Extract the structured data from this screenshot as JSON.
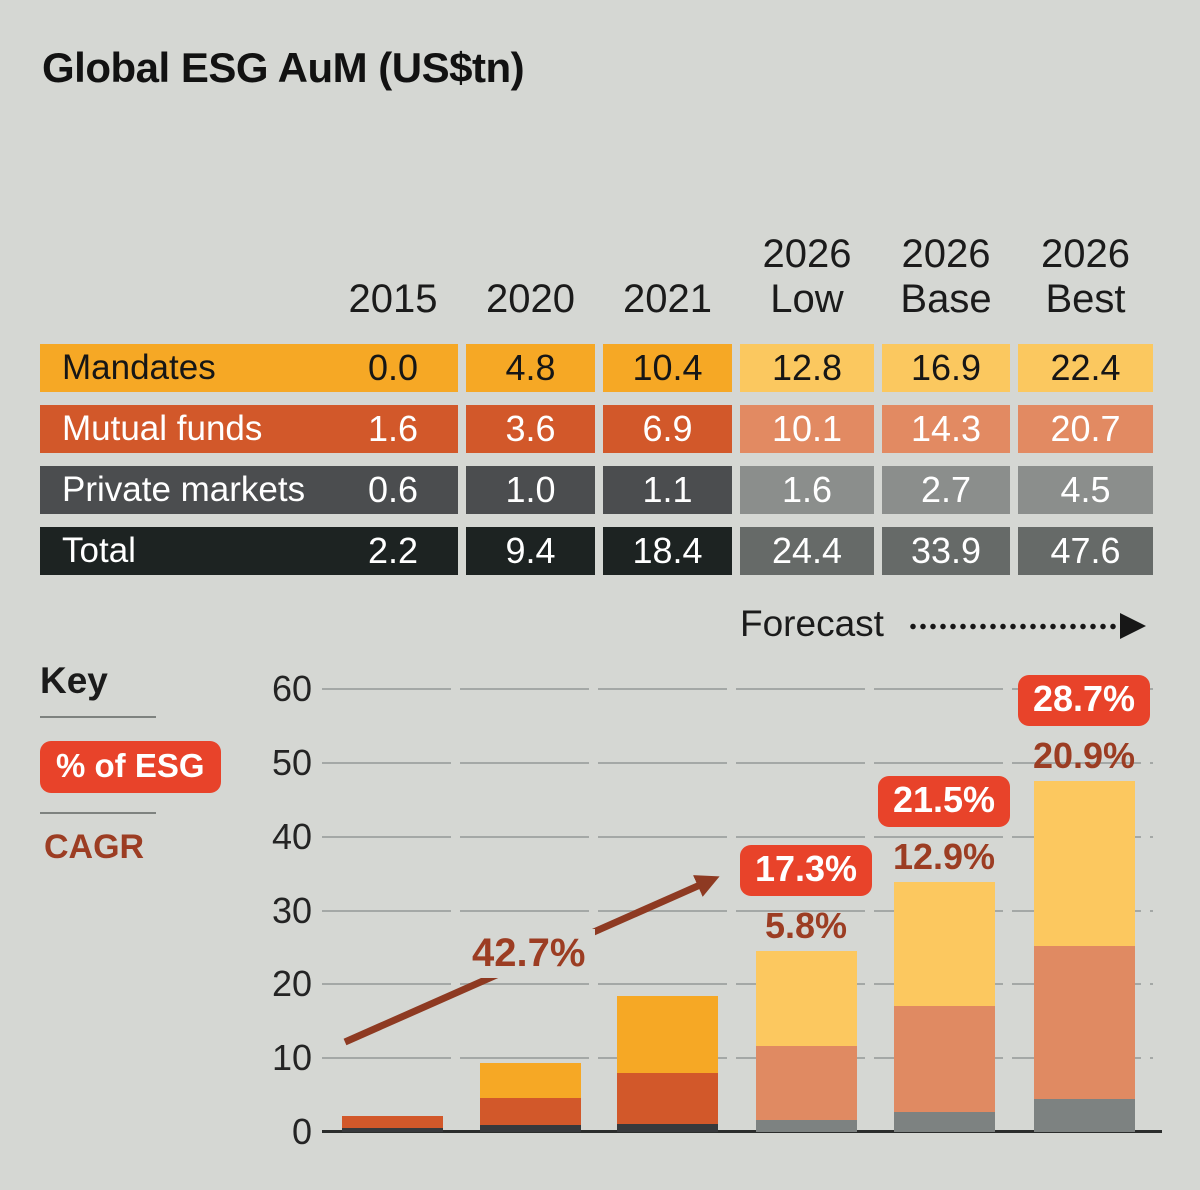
{
  "title": "Global ESG AuM (US$tn)",
  "table": {
    "columns": [
      "2015",
      "2020",
      "2021",
      "2026\nLow",
      "2026\nBase",
      "2026\nBest"
    ],
    "rows": [
      {
        "label": "Mandates",
        "values": [
          "0.0",
          "4.8",
          "10.4",
          "12.8",
          "16.9",
          "22.4"
        ],
        "bg_historical": "#f6a825",
        "bg_forecast": "#fbc85f",
        "text_color": "#161616"
      },
      {
        "label": "Mutual funds",
        "values": [
          "1.6",
          "3.6",
          "6.9",
          "10.1",
          "14.3",
          "20.7"
        ],
        "bg_historical": "#d2582a",
        "bg_forecast": "#e28a62",
        "text_color": "#ffffff"
      },
      {
        "label": "Private markets",
        "values": [
          "0.6",
          "1.0",
          "1.1",
          "1.6",
          "2.7",
          "4.5"
        ],
        "bg_historical": "#4b4d4f",
        "bg_forecast": "#8b8e8c",
        "text_color": "#ffffff"
      },
      {
        "label": "Total",
        "values": [
          "2.2",
          "9.4",
          "18.4",
          "24.4",
          "33.9",
          "47.6"
        ],
        "bg_historical": "#1d2322",
        "bg_forecast": "#666a68",
        "text_color": "#ffffff"
      }
    ]
  },
  "forecast_label": "Forecast",
  "key": {
    "title": "Key",
    "esg_label": "% of ESG",
    "cagr_label": "CAGR"
  },
  "chart_data": {
    "type": "bar",
    "stacked": true,
    "title": "Global ESG AuM (US$tn)",
    "xlabel": "",
    "ylabel": "",
    "categories": [
      "2015",
      "2020",
      "2021",
      "2026 Low",
      "2026 Base",
      "2026 Best"
    ],
    "series": [
      {
        "name": "Private markets",
        "values": [
          0.6,
          1.0,
          1.1,
          1.6,
          2.7,
          4.5
        ],
        "color_historical": "#37393c",
        "color_forecast": "#7d8281"
      },
      {
        "name": "Mutual funds",
        "values": [
          1.6,
          3.6,
          6.9,
          10.1,
          14.3,
          20.7
        ],
        "color_historical": "#d2582a",
        "color_forecast": "#e08a62"
      },
      {
        "name": "Mandates",
        "values": [
          0.0,
          4.8,
          10.4,
          12.8,
          16.9,
          22.4
        ],
        "color_historical": "#f6a825",
        "color_forecast": "#fcc85f"
      }
    ],
    "totals": [
      2.2,
      9.4,
      18.4,
      24.4,
      33.9,
      47.6
    ],
    "forecast_start_index": 3,
    "y_ticks": [
      0,
      10,
      20,
      30,
      40,
      50,
      60
    ],
    "ylim": [
      0,
      60
    ],
    "grid": true,
    "legend_position": "left",
    "esg_share_labels": [
      null,
      null,
      null,
      "17.3%",
      "21.5%",
      "28.7%"
    ],
    "cagr_labels": [
      null,
      null,
      null,
      "5.8%",
      "12.9%",
      "20.9%"
    ],
    "cagr_trend_annotation": "42.7%"
  },
  "colors": {
    "background": "#d5d7d3",
    "esg_badge": "#e8432a",
    "cagr_text": "#9c3d23",
    "cagr_arrow": "#8e3a22",
    "gridline": "#a4a8a6",
    "baseline": "#2b2d2c",
    "forecast_arrow": "#171717"
  }
}
